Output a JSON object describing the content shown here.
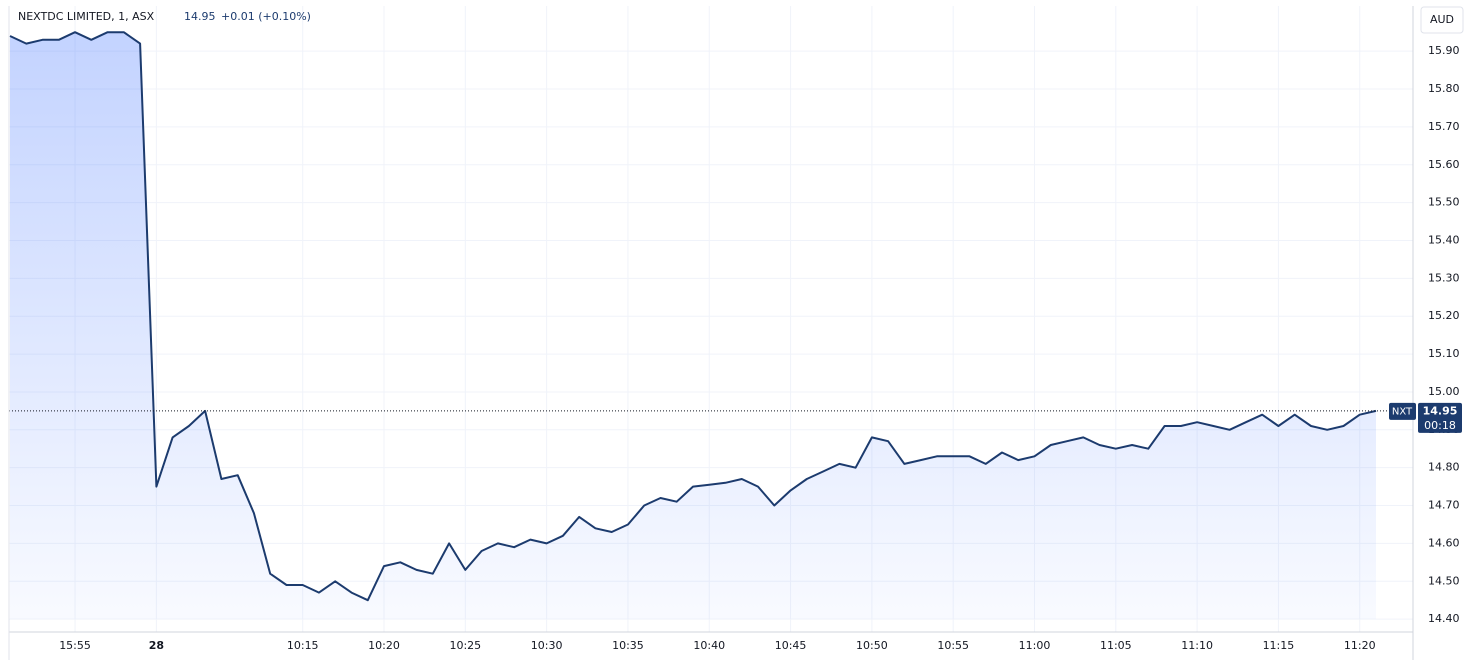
{
  "chart_data": {
    "type": "line",
    "title": "NEXTDC LIMITED, 1, ASX",
    "change": "+0.01 (+0.10%)",
    "currency": "AUD",
    "countdown": "00:18",
    "grid": true,
    "categories": [
      null,
      null,
      null,
      null,
      "15:55",
      null,
      null,
      null,
      null,
      "28",
      null,
      null,
      null,
      null,
      null,
      null,
      null,
      null,
      "10:15",
      null,
      null,
      null,
      null,
      "10:20",
      null,
      null,
      null,
      null,
      "10:25",
      null,
      null,
      null,
      null,
      "10:30",
      null,
      null,
      null,
      null,
      "10:35",
      null,
      null,
      null,
      null,
      "10:40",
      null,
      null,
      null,
      null,
      "10:45",
      null,
      null,
      null,
      null,
      "10:50",
      null,
      null,
      null,
      null,
      "10:55",
      null,
      null,
      null,
      null,
      "11:00",
      null,
      null,
      null,
      null,
      "11:05",
      null,
      null,
      null,
      null,
      "11:10",
      null,
      null,
      null,
      null,
      "11:15",
      null,
      null,
      null,
      null,
      "11:20",
      null
    ],
    "series": [
      {
        "name": "NXT",
        "color": "#1c3b6e",
        "values": [
          15.94,
          15.92,
          15.93,
          15.93,
          15.95,
          15.93,
          15.95,
          15.95,
          15.92,
          14.75,
          14.88,
          14.91,
          14.95,
          14.77,
          14.78,
          14.68,
          14.52,
          14.49,
          14.49,
          14.47,
          14.5,
          14.47,
          14.45,
          14.54,
          14.55,
          14.53,
          14.52,
          14.6,
          14.53,
          14.58,
          14.6,
          14.59,
          14.61,
          14.6,
          14.62,
          14.67,
          14.64,
          14.63,
          14.65,
          14.7,
          14.72,
          14.71,
          14.75,
          14.755,
          14.76,
          14.77,
          14.75,
          14.7,
          14.74,
          14.77,
          14.79,
          14.81,
          14.8,
          14.88,
          14.87,
          14.81,
          14.82,
          14.83,
          14.83,
          14.83,
          14.81,
          14.84,
          14.82,
          14.83,
          14.86,
          14.87,
          14.88,
          14.86,
          14.85,
          14.86,
          14.85,
          14.91,
          14.91,
          14.92,
          14.91,
          14.9,
          14.92,
          14.94,
          14.91,
          14.94,
          14.91,
          14.9,
          14.91,
          14.94,
          14.95
        ]
      }
    ],
    "ylim": [
      14.366,
      16.014
    ],
    "yticks": [
      {
        "value": 14.4,
        "label": "14.40"
      },
      {
        "value": 14.5,
        "label": "14.50"
      },
      {
        "value": 14.6,
        "label": "14.60"
      },
      {
        "value": 14.7,
        "label": "14.70"
      },
      {
        "value": 14.8,
        "label": "14.80"
      },
      {
        "value": 14.9,
        "label": "14.90"
      },
      {
        "value": 15,
        "label": "15.00"
      },
      {
        "value": 15.1,
        "label": "15.10"
      },
      {
        "value": 15.2,
        "label": "15.20"
      },
      {
        "value": 15.3,
        "label": "15.30"
      },
      {
        "value": 15.4,
        "label": "15.40"
      },
      {
        "value": 15.5,
        "label": "15.50"
      },
      {
        "value": 15.6,
        "label": "15.60"
      },
      {
        "value": 15.7,
        "label": "15.70"
      },
      {
        "value": 15.8,
        "label": "15.80"
      },
      {
        "value": 15.9,
        "label": "15.90"
      }
    ]
  }
}
